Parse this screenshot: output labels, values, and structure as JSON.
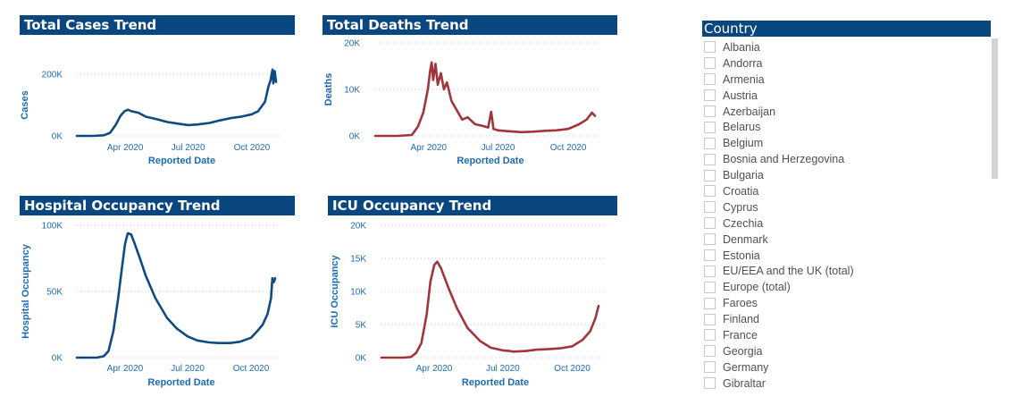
{
  "colors": {
    "header_bg": "#0a4780",
    "blue_line": "#0f4a82",
    "red_line": "#a1353c",
    "axis_text": "#1d6bb5"
  },
  "chart_data": [
    {
      "id": "cases",
      "type": "line",
      "title": "Total Cases Trend",
      "xlabel": "Reported Date",
      "ylabel": "Cases",
      "x_ticks": [
        "Apr 2020",
        "Jul 2020",
        "Oct 2020"
      ],
      "y_ticks": [
        "0K",
        "200K"
      ],
      "ylim": [
        0,
        200000
      ],
      "grid": true,
      "color": "#0f4a82",
      "series": [
        {
          "x": [
            "2020-01-22",
            "2020-02-15",
            "2020-03-01",
            "2020-03-10",
            "2020-03-18",
            "2020-03-25",
            "2020-03-31",
            "2020-04-05",
            "2020-04-10",
            "2020-04-20",
            "2020-05-01",
            "2020-05-15",
            "2020-06-01",
            "2020-06-15",
            "2020-07-01",
            "2020-07-15",
            "2020-08-01",
            "2020-08-15",
            "2020-09-01",
            "2020-09-15",
            "2020-10-01",
            "2020-10-10",
            "2020-10-20",
            "2020-10-25",
            "2020-10-28",
            "2020-10-31",
            "2020-11-01",
            "2020-11-03",
            "2020-11-05"
          ],
          "y": [
            0,
            0,
            2000,
            10000,
            35000,
            65000,
            80000,
            85000,
            80000,
            75000,
            62000,
            55000,
            45000,
            40000,
            35000,
            37000,
            42000,
            50000,
            58000,
            62000,
            70000,
            80000,
            110000,
            160000,
            180000,
            215000,
            170000,
            210000,
            175000
          ]
        }
      ]
    },
    {
      "id": "deaths",
      "type": "line",
      "title": "Total Deaths Trend",
      "xlabel": "Reported Date",
      "ylabel": "Deaths",
      "x_ticks": [
        "Apr 2020",
        "Jul 2020",
        "Oct 2020"
      ],
      "y_ticks": [
        "0K",
        "10K",
        "20K"
      ],
      "ylim": [
        0,
        20000
      ],
      "grid": true,
      "color": "#a1353c",
      "series": [
        {
          "x": [
            "2020-01-22",
            "2020-02-20",
            "2020-03-10",
            "2020-03-18",
            "2020-03-25",
            "2020-03-31",
            "2020-04-03",
            "2020-04-05",
            "2020-04-07",
            "2020-04-10",
            "2020-04-13",
            "2020-04-17",
            "2020-04-21",
            "2020-04-25",
            "2020-05-01",
            "2020-05-08",
            "2020-05-15",
            "2020-05-22",
            "2020-06-01",
            "2020-06-10",
            "2020-06-18",
            "2020-06-22",
            "2020-06-25",
            "2020-07-01",
            "2020-07-15",
            "2020-08-01",
            "2020-08-15",
            "2020-09-01",
            "2020-09-15",
            "2020-10-01",
            "2020-10-15",
            "2020-10-25",
            "2020-11-01",
            "2020-11-05"
          ],
          "y": [
            0,
            0,
            200,
            2000,
            5000,
            10000,
            14000,
            15800,
            12000,
            15500,
            11000,
            13500,
            10000,
            11500,
            7500,
            5500,
            3500,
            4000,
            2500,
            2200,
            1800,
            5200,
            1500,
            1200,
            1000,
            800,
            900,
            1100,
            1200,
            1500,
            2500,
            3500,
            5000,
            4300
          ]
        }
      ]
    },
    {
      "id": "hospital",
      "type": "line",
      "title": "Hospital Occupancy Trend",
      "xlabel": "Reported Date",
      "ylabel": "Hospital Occupancy",
      "x_ticks": [
        "Apr 2020",
        "Jul 2020",
        "Oct 2020"
      ],
      "y_ticks": [
        "0K",
        "50K",
        "100K"
      ],
      "ylim": [
        0,
        100000
      ],
      "grid": true,
      "color": "#0f4a82",
      "series": [
        {
          "x": [
            "2020-01-22",
            "2020-02-20",
            "2020-03-01",
            "2020-03-08",
            "2020-03-15",
            "2020-03-22",
            "2020-03-28",
            "2020-04-01",
            "2020-04-05",
            "2020-04-10",
            "2020-04-15",
            "2020-04-22",
            "2020-05-01",
            "2020-05-15",
            "2020-06-01",
            "2020-06-15",
            "2020-07-01",
            "2020-07-15",
            "2020-08-01",
            "2020-08-15",
            "2020-09-01",
            "2020-09-15",
            "2020-10-01",
            "2020-10-10",
            "2020-10-18",
            "2020-10-25",
            "2020-10-30",
            "2020-11-01",
            "2020-11-03",
            "2020-11-05"
          ],
          "y": [
            0,
            0,
            1000,
            5000,
            20000,
            45000,
            70000,
            86000,
            94000,
            93000,
            86000,
            76000,
            62000,
            45000,
            30000,
            22000,
            16000,
            13000,
            11500,
            11000,
            11000,
            12000,
            15000,
            20000,
            25000,
            33000,
            45000,
            60000,
            57000,
            60000
          ]
        }
      ]
    },
    {
      "id": "icu",
      "type": "line",
      "title": "ICU Occupancy Trend",
      "xlabel": "Reported Date",
      "ylabel": "ICU Occupancy",
      "x_ticks": [
        "Apr 2020",
        "Jul 2020",
        "Oct 2020"
      ],
      "y_ticks": [
        "0K",
        "5K",
        "10K",
        "15K",
        "20K"
      ],
      "ylim": [
        0,
        20000
      ],
      "grid": true,
      "color": "#a1353c",
      "series": [
        {
          "x": [
            "2020-01-22",
            "2020-02-20",
            "2020-03-01",
            "2020-03-08",
            "2020-03-15",
            "2020-03-22",
            "2020-03-27",
            "2020-04-01",
            "2020-04-05",
            "2020-04-10",
            "2020-04-20",
            "2020-05-01",
            "2020-05-15",
            "2020-06-01",
            "2020-06-15",
            "2020-07-01",
            "2020-07-10",
            "2020-07-15",
            "2020-08-01",
            "2020-08-15",
            "2020-09-01",
            "2020-09-15",
            "2020-10-01",
            "2020-10-15",
            "2020-10-25",
            "2020-11-01",
            "2020-11-05"
          ],
          "y": [
            0,
            0,
            100,
            700,
            2200,
            6500,
            11500,
            14000,
            14500,
            13500,
            10500,
            7500,
            4500,
            2500,
            1500,
            1100,
            1000,
            900,
            1000,
            1200,
            1300,
            1400,
            1700,
            2700,
            4000,
            6000,
            7800
          ]
        }
      ]
    }
  ],
  "country_slicer": {
    "title": "Country",
    "items": [
      "Albania",
      "Andorra",
      "Armenia",
      "Austria",
      "Azerbaijan",
      "Belarus",
      "Belgium",
      "Bosnia and Herzegovina",
      "Bulgaria",
      "Croatia",
      "Cyprus",
      "Czechia",
      "Denmark",
      "Estonia",
      "EU/EEA and the UK (total)",
      "Europe (total)",
      "Faroes",
      "Finland",
      "France",
      "Georgia",
      "Germany",
      "Gibraltar"
    ]
  }
}
